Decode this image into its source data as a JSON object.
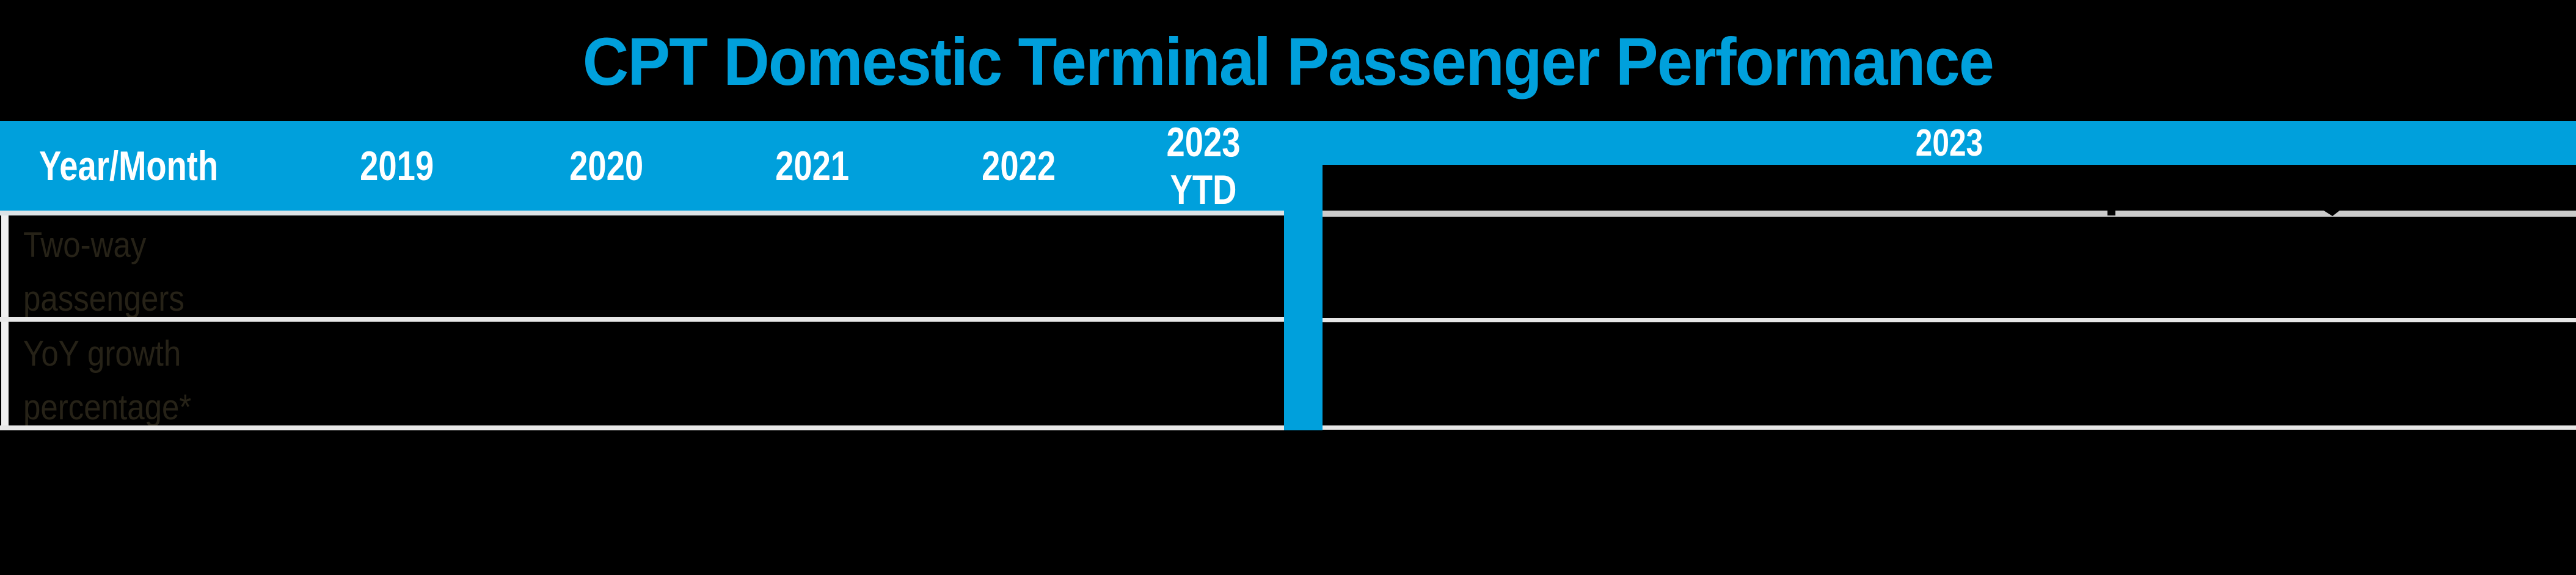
{
  "title": {
    "text": "CPT Domestic Terminal Passenger Performance"
  },
  "left_table": {
    "header": {
      "row_label_column": "Year/Month",
      "columns": [
        "2019",
        "2020",
        "2021",
        "2022",
        "2023 YTD"
      ]
    },
    "rows": [
      {
        "label": "Two-way passengers",
        "label_line1": "Two-way",
        "label_line2": "passengers",
        "values": [
          "",
          "",
          "",
          "",
          ""
        ]
      },
      {
        "label": "YoY growth percentage*",
        "label_line1": "YoY growth",
        "label_line2": "percentage*",
        "values": [
          "",
          "",
          "",
          "",
          ""
        ]
      }
    ]
  },
  "right_table": {
    "year_band_label": "2023",
    "month_columns_visible": "",
    "rows": [
      {
        "values": ""
      },
      {
        "values": ""
      }
    ]
  },
  "chart_data": {
    "type": "table",
    "title": "CPT Domestic Terminal Passenger Performance",
    "tables": [
      {
        "name": "annual-summary",
        "columns": [
          "Year/Month",
          "2019",
          "2020",
          "2021",
          "2022",
          "2023 YTD"
        ],
        "rows": [
          [
            "Two-way passengers",
            "",
            "",
            "",
            "",
            ""
          ],
          [
            "YoY growth percentage*",
            "",
            "",
            "",
            "",
            ""
          ]
        ],
        "note": "data cell values are not visible in the rendered pixels (black text on black background)"
      },
      {
        "name": "monthly-2023",
        "columns": [
          "2023"
        ],
        "rows": [],
        "note": "month header text and cell values are not visible; only border lines and two small text-descender remnants show"
      }
    ],
    "layout_hints": {
      "background": "#000000",
      "header_style": "blue band with white bold text",
      "grid": "horizontal border lines only"
    }
  },
  "colors": {
    "accent_blue": "#00A0DC",
    "title_blue": "#00A0DC",
    "header_text": "#FFFFFF",
    "row_label_text": "#262217",
    "left_table_border": "#DDE3E6",
    "row_border_light": "#E8E8E8",
    "right_header_stripe": "#CBCBCB",
    "background": "#000000"
  }
}
